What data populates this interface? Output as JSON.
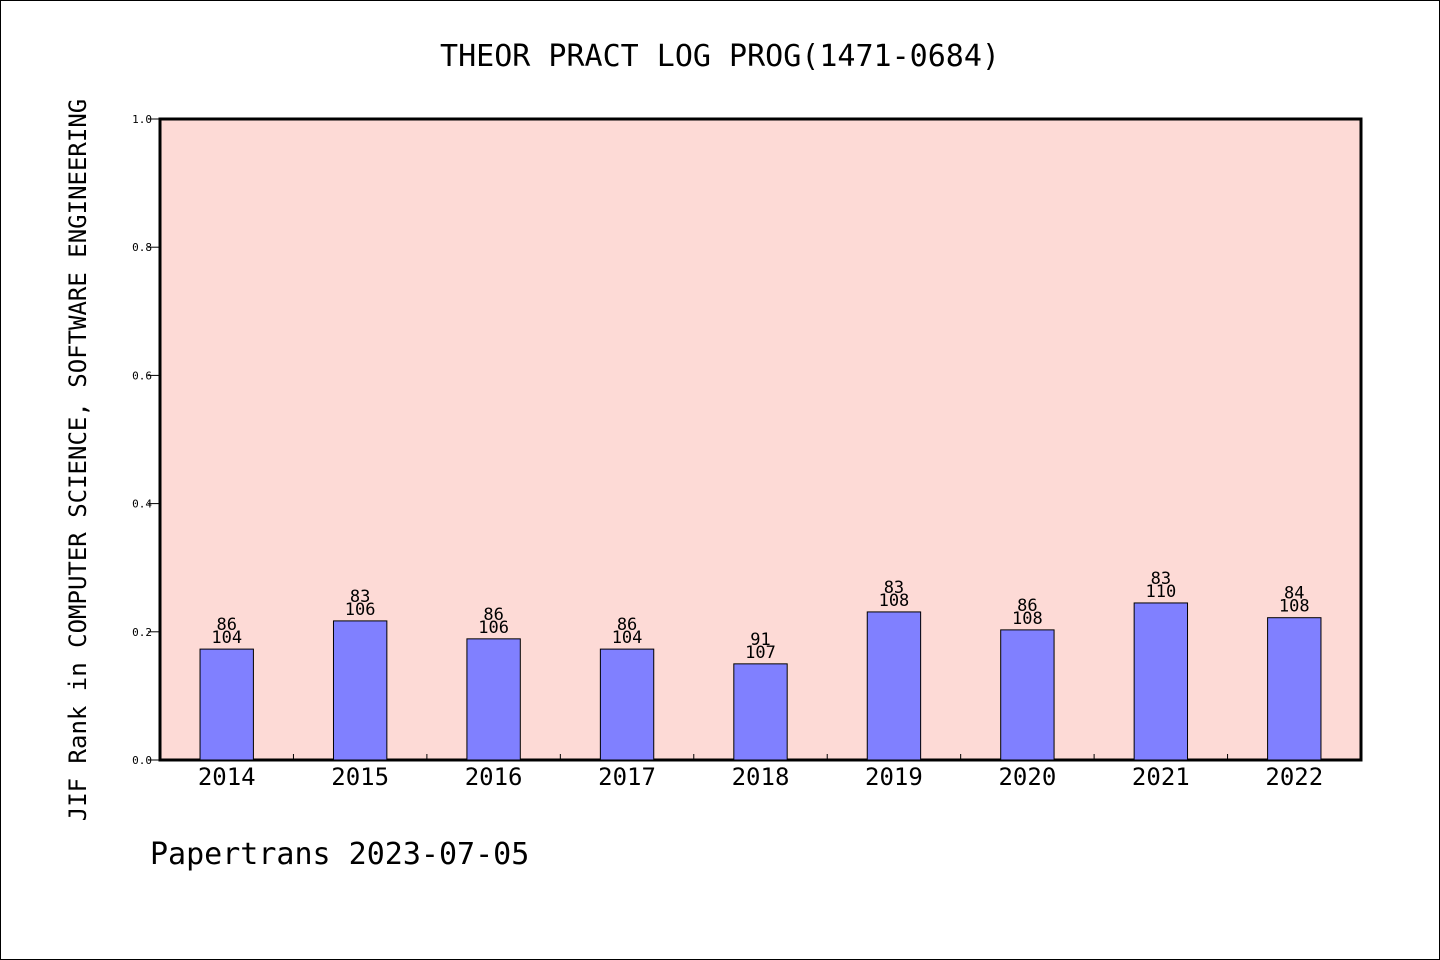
{
  "chart_data": {
    "type": "bar",
    "title": "THEOR PRACT LOG PROG(1471-0684)",
    "ylabel": "JIF Rank in COMPUTER SCIENCE, SOFTWARE ENGINEERING",
    "xlabel": "",
    "ylim": [
      0,
      1.0
    ],
    "yticks": [
      "0.0",
      "0.2",
      "0.4",
      "0.6",
      "0.8",
      "1.0"
    ],
    "categories": [
      "2014",
      "2015",
      "2016",
      "2017",
      "2018",
      "2019",
      "2020",
      "2021",
      "2022"
    ],
    "values": [
      0.173,
      0.217,
      0.189,
      0.173,
      0.15,
      0.231,
      0.203,
      0.245,
      0.222
    ],
    "rank_labels": [
      "86",
      "83",
      "86",
      "86",
      "91",
      "83",
      "86",
      "83",
      "84"
    ],
    "total_labels": [
      "104",
      "106",
      "106",
      "104",
      "107",
      "108",
      "108",
      "110",
      "108"
    ],
    "grid": false,
    "colors": {
      "bar": "#8080ff",
      "plot_bg": "#fddad6",
      "axis": "#000000"
    }
  },
  "footer": {
    "credit": "Papertrans 2023-07-05"
  }
}
